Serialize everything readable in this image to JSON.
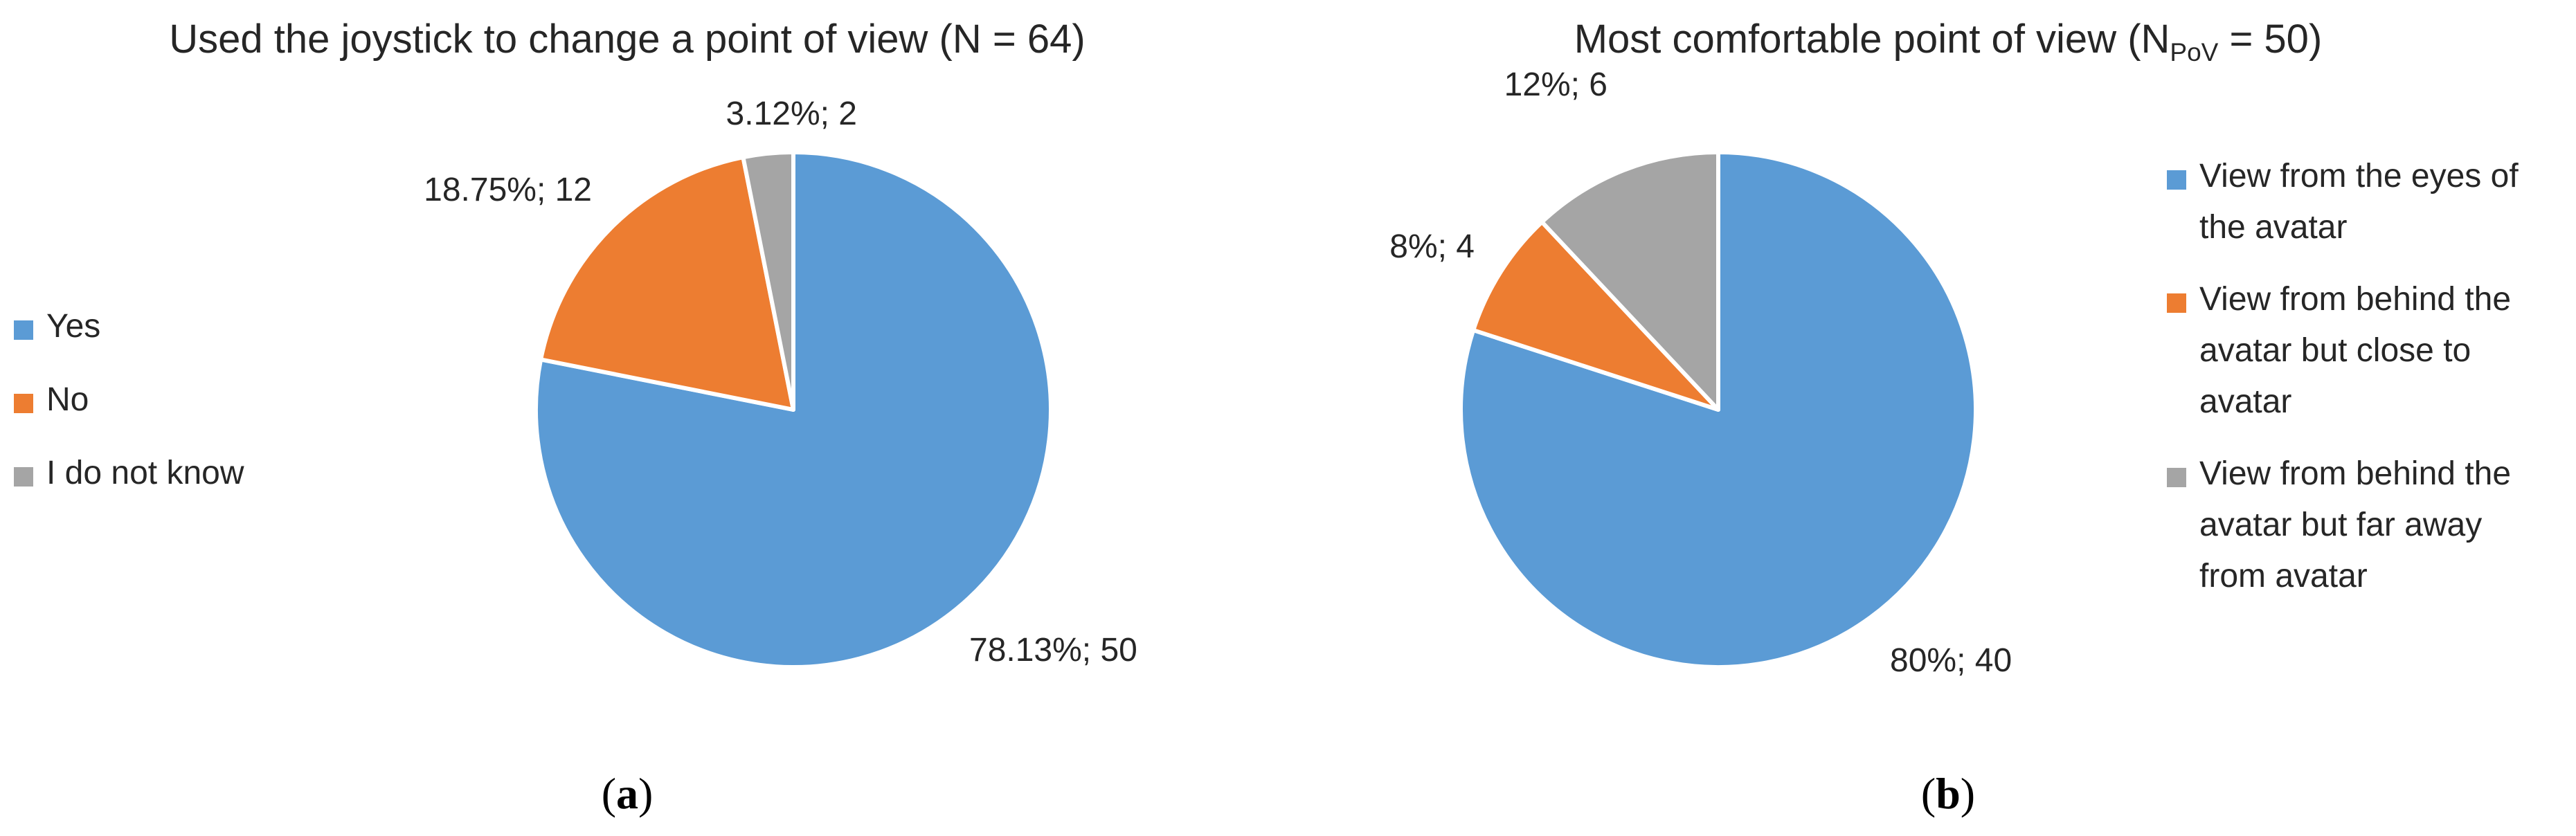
{
  "colors": {
    "blue": "#5B9BD5",
    "orange": "#ED7D31",
    "gray": "#A5A5A5"
  },
  "chart_data": [
    {
      "type": "pie",
      "title": "Used the joystick to change a point of view (N = 64)",
      "panel_label": "a",
      "legend_position": "left",
      "slices": [
        {
          "name": "Yes",
          "value": 50,
          "label": "78.13%; 50",
          "color": "#5B9BD5"
        },
        {
          "name": "No",
          "value": 12,
          "label": "18.75%; 12",
          "color": "#ED7D31"
        },
        {
          "name": "I do not know",
          "value": 2,
          "label": "3.12%; 2",
          "color": "#A5A5A5"
        }
      ]
    },
    {
      "type": "pie",
      "title": "Most comfortable point of view (N",
      "title_subscript": "PoV",
      "title_suffix": " = 50)",
      "panel_label": "b",
      "legend_position": "right",
      "slices": [
        {
          "name": "View from the eyes of the avatar",
          "legend_lines": [
            "View from the eyes of",
            "the avatar"
          ],
          "value": 40,
          "label": "80%; 40",
          "color": "#5B9BD5"
        },
        {
          "name": "View from behind the avatar but close to avatar",
          "legend_lines": [
            "View from behind the",
            "avatar but close to",
            "avatar"
          ],
          "value": 4,
          "label": "8%; 4",
          "color": "#ED7D31"
        },
        {
          "name": "View from behind the avatar but far away from avatar",
          "legend_lines": [
            "View from behind the",
            "avatar but far away",
            "from avatar"
          ],
          "value": 6,
          "label": "12%; 6",
          "color": "#A5A5A5"
        }
      ]
    }
  ]
}
